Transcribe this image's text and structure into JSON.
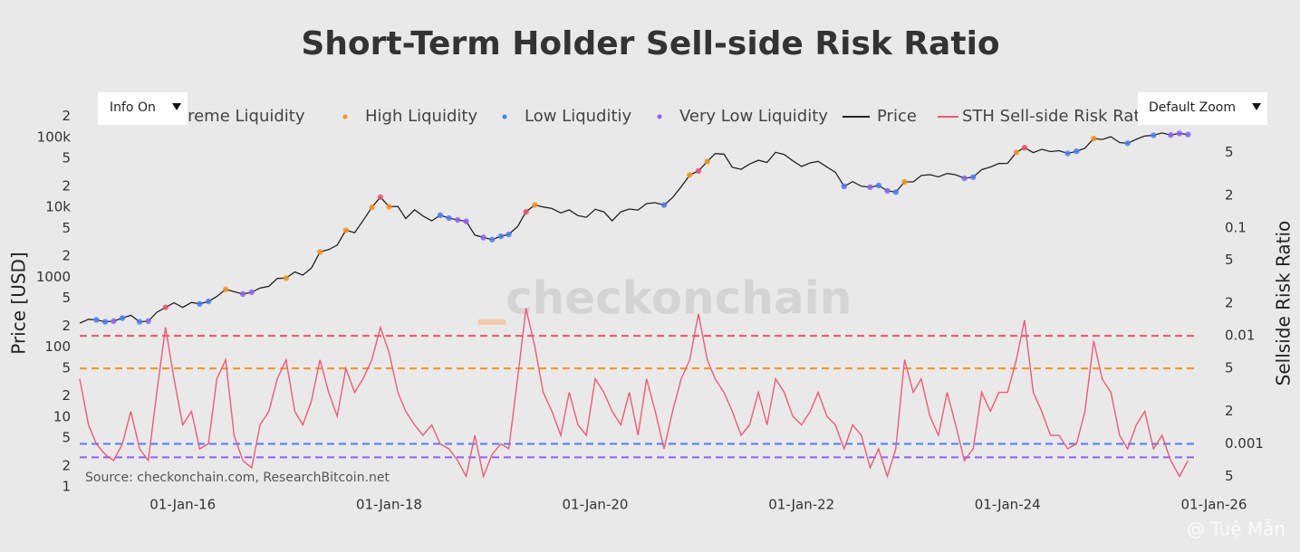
{
  "chart_data": {
    "type": "line",
    "title": "Short-Term Holder Sell-side Risk Ratio",
    "ylabel": "Price [USD]",
    "y2label": "Sellside Risk Ratio",
    "source": "Source: checkonchain.com, ResearchBitcoin.net",
    "watermark": "checkonchain",
    "log_scale": true,
    "grid": false,
    "xlim": [
      "2015-01-01",
      "2026-01-01"
    ],
    "xticks": [
      {
        "value": "2016-01-01",
        "label": "01-Jan-16"
      },
      {
        "value": "2018-01-01",
        "label": "01-Jan-18"
      },
      {
        "value": "2020-01-01",
        "label": "01-Jan-20"
      },
      {
        "value": "2022-01-01",
        "label": "01-Jan-22"
      },
      {
        "value": "2024-01-01",
        "label": "01-Jan-24"
      },
      {
        "value": "2026-01-01",
        "label": "01-Jan-26"
      }
    ],
    "ylim": [
      1,
      300000
    ],
    "yticks": [
      1,
      {
        "value": 2,
        "label": "2"
      },
      5,
      10,
      {
        "value": 20,
        "label": "2"
      },
      {
        "value": 50,
        "label": "5"
      },
      100,
      {
        "value": 200,
        "label": "2"
      },
      {
        "value": 500,
        "label": "5"
      },
      1000,
      {
        "value": 2000,
        "label": "2"
      },
      {
        "value": 5000,
        "label": "5"
      },
      {
        "value": 10000,
        "label": "10k"
      },
      {
        "value": 20000,
        "label": "2"
      },
      {
        "value": 50000,
        "label": "5"
      },
      {
        "value": 100000,
        "label": "100k"
      },
      {
        "value": 200000,
        "label": "2"
      }
    ],
    "y2lim": [
      0.0004,
      1.4
    ],
    "y2ticks": [
      {
        "value": 0.0005,
        "label": "5"
      },
      0.001,
      {
        "value": 0.002,
        "label": "2"
      },
      {
        "value": 0.005,
        "label": "5"
      },
      0.01,
      {
        "value": 0.02,
        "label": "2"
      },
      {
        "value": 0.05,
        "label": "5"
      },
      0.1,
      {
        "value": 0.2,
        "label": "2"
      },
      {
        "value": 0.5,
        "label": "5"
      }
    ],
    "bands": [
      {
        "name": "Extreme Liquidity",
        "color": "#f0506e",
        "value": 0.01
      },
      {
        "name": "High Liquidity",
        "color": "#f7941d",
        "value": 0.005
      },
      {
        "name": "Low Liquditiy",
        "color": "#4f7bf5",
        "value": 0.001
      },
      {
        "name": "Very Low Liquidity",
        "color": "#8a63f2",
        "value": 0.00075
      }
    ],
    "x": [
      "2015-01-01",
      "2015-02-01",
      "2015-03-01",
      "2015-04-01",
      "2015-05-01",
      "2015-06-01",
      "2015-07-01",
      "2015-08-01",
      "2015-09-01",
      "2015-10-01",
      "2015-11-01",
      "2015-12-01",
      "2016-01-01",
      "2016-02-01",
      "2016-03-01",
      "2016-04-01",
      "2016-05-01",
      "2016-06-01",
      "2016-07-01",
      "2016-08-01",
      "2016-09-01",
      "2016-10-01",
      "2016-11-01",
      "2016-12-01",
      "2017-01-01",
      "2017-02-01",
      "2017-03-01",
      "2017-04-01",
      "2017-05-01",
      "2017-06-01",
      "2017-07-01",
      "2017-08-01",
      "2017-09-01",
      "2017-10-01",
      "2017-11-01",
      "2017-12-01",
      "2018-01-01",
      "2018-02-01",
      "2018-03-01",
      "2018-04-01",
      "2018-05-01",
      "2018-06-01",
      "2018-07-01",
      "2018-08-01",
      "2018-09-01",
      "2018-10-01",
      "2018-11-01",
      "2018-12-01",
      "2019-01-01",
      "2019-02-01",
      "2019-03-01",
      "2019-04-01",
      "2019-05-01",
      "2019-06-01",
      "2019-07-01",
      "2019-08-01",
      "2019-09-01",
      "2019-10-01",
      "2019-11-01",
      "2019-12-01",
      "2020-01-01",
      "2020-02-01",
      "2020-03-01",
      "2020-04-01",
      "2020-05-01",
      "2020-06-01",
      "2020-07-01",
      "2020-08-01",
      "2020-09-01",
      "2020-10-01",
      "2020-11-01",
      "2020-12-01",
      "2021-01-01",
      "2021-02-01",
      "2021-03-01",
      "2021-04-01",
      "2021-05-01",
      "2021-06-01",
      "2021-07-01",
      "2021-08-01",
      "2021-09-01",
      "2021-10-01",
      "2021-11-01",
      "2021-12-01",
      "2022-01-01",
      "2022-02-01",
      "2022-03-01",
      "2022-04-01",
      "2022-05-01",
      "2022-06-01",
      "2022-07-01",
      "2022-08-01",
      "2022-09-01",
      "2022-10-01",
      "2022-11-01",
      "2022-12-01",
      "2023-01-01",
      "2023-02-01",
      "2023-03-01",
      "2023-04-01",
      "2023-05-01",
      "2023-06-01",
      "2023-07-01",
      "2023-08-01",
      "2023-09-01",
      "2023-10-01",
      "2023-11-01",
      "2023-12-01",
      "2024-01-01",
      "2024-02-01",
      "2024-03-01",
      "2024-04-01",
      "2024-05-01",
      "2024-06-01",
      "2024-07-01",
      "2024-08-01",
      "2024-09-01",
      "2024-10-01",
      "2024-11-01",
      "2024-12-01",
      "2025-01-01",
      "2025-02-01",
      "2025-03-01",
      "2025-04-01",
      "2025-05-01",
      "2025-06-01",
      "2025-07-01",
      "2025-08-01",
      "2025-09-01",
      "2025-10-01"
    ],
    "series": [
      {
        "name": "Price",
        "color": "#222222",
        "values": [
          220,
          250,
          245,
          230,
          235,
          260,
          285,
          230,
          235,
          315,
          370,
          430,
          370,
          435,
          415,
          450,
          530,
          670,
          620,
          575,
          610,
          700,
          740,
          960,
          970,
          1190,
          1070,
          1350,
          2300,
          2480,
          2870,
          4700,
          4340,
          6450,
          10000,
          14000,
          10200,
          10300,
          6900,
          9200,
          7500,
          6400,
          7700,
          7000,
          6600,
          6300,
          4000,
          3700,
          3450,
          3850,
          4100,
          5300,
          8600,
          10800,
          10100,
          9600,
          8300,
          9200,
          7600,
          7200,
          9350,
          8600,
          6400,
          8600,
          9450,
          9140,
          11300,
          11650,
          10780,
          13800,
          19700,
          29000,
          33100,
          45200,
          58800,
          57700,
          37300,
          35000,
          41500,
          47100,
          43800,
          61300,
          57000,
          46300,
          38500,
          43200,
          45500,
          37700,
          31800,
          19900,
          23300,
          20000,
          19400,
          20500,
          17200,
          16500,
          23100,
          23100,
          28500,
          29300,
          27200,
          30500,
          29200,
          26000,
          27000,
          34500,
          37700,
          42300,
          42600,
          61200,
          71300,
          60600,
          67500,
          62700,
          64600,
          59000,
          63300,
          70200,
          96400,
          93400,
          102400,
          84400,
          82500,
          94200,
          104600,
          107100,
          115800,
          108200,
          114000,
          110000
        ]
      },
      {
        "name": "STH Sell-side Risk Ratio",
        "color": "#f0597a",
        "axis": "y2",
        "values": [
          0.004,
          0.0015,
          0.001,
          0.0008,
          0.0007,
          0.001,
          0.002,
          0.0009,
          0.0007,
          0.003,
          0.012,
          0.004,
          0.0015,
          0.002,
          0.0009,
          0.001,
          0.004,
          0.006,
          0.0012,
          0.0007,
          0.0006,
          0.0015,
          0.002,
          0.004,
          0.006,
          0.002,
          0.0015,
          0.0025,
          0.006,
          0.003,
          0.0018,
          0.005,
          0.003,
          0.004,
          0.006,
          0.012,
          0.007,
          0.003,
          0.002,
          0.0015,
          0.0012,
          0.0015,
          0.001,
          0.0009,
          0.0007,
          0.0005,
          0.0012,
          0.0005,
          0.0008,
          0.001,
          0.0009,
          0.004,
          0.018,
          0.008,
          0.003,
          0.002,
          0.0012,
          0.003,
          0.0015,
          0.0012,
          0.004,
          0.003,
          0.002,
          0.0015,
          0.003,
          0.0012,
          0.004,
          0.002,
          0.0009,
          0.002,
          0.004,
          0.006,
          0.016,
          0.006,
          0.004,
          0.003,
          0.002,
          0.0012,
          0.0015,
          0.003,
          0.0015,
          0.004,
          0.003,
          0.0018,
          0.0015,
          0.002,
          0.003,
          0.0018,
          0.0015,
          0.0009,
          0.0015,
          0.0012,
          0.0006,
          0.0009,
          0.0005,
          0.0009,
          0.006,
          0.003,
          0.004,
          0.0018,
          0.0012,
          0.003,
          0.0015,
          0.0007,
          0.0009,
          0.003,
          0.002,
          0.003,
          0.003,
          0.006,
          0.014,
          0.003,
          0.002,
          0.0012,
          0.0012,
          0.0009,
          0.001,
          0.002,
          0.009,
          0.004,
          0.003,
          0.0012,
          0.0009,
          0.0015,
          0.002,
          0.0009,
          0.0012,
          0.0007,
          0.0005,
          0.0007
        ]
      }
    ]
  },
  "controls": {
    "left_button": "Info On",
    "right_button": "Default Zoom"
  },
  "footer": "@ Tuệ Mẫn"
}
